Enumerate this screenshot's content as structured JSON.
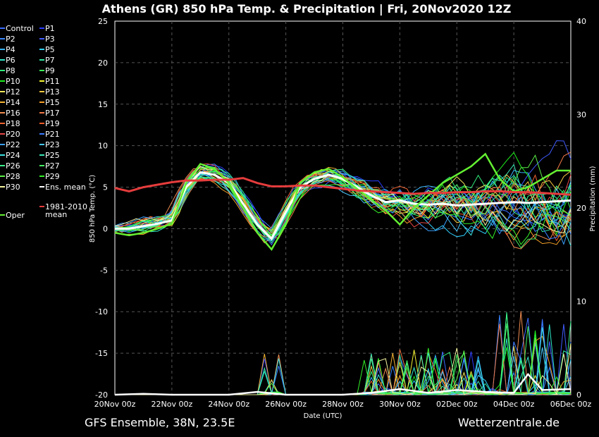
{
  "chart_data": {
    "type": "line",
    "title": "Athens  (GR)  850 hPa Temp. & Precipitation | Fri, 20Nov2020 12Z",
    "xlabel": "Date (UTC)",
    "ylabel_left": "850 hPa Temp. (°C)",
    "ylabel_right": "Precipitation (mm)",
    "x_ticks": [
      "20Nov 00z",
      "22Nov 00z",
      "24Nov 00z",
      "26Nov 00z",
      "28Nov 00z",
      "30Nov 00z",
      "02Dec 00z",
      "04Dec 00z",
      "06Dec 00z"
    ],
    "y_left_ticks": [
      "25",
      "20",
      "15",
      "10",
      "5",
      "0",
      "-5",
      "-10",
      "-15",
      "-20"
    ],
    "y_right_ticks": [
      "40",
      "30",
      "20",
      "10",
      "0"
    ],
    "ylim_left": [
      -20,
      25
    ],
    "ylim_right": [
      0,
      40
    ],
    "x_range_days": [
      0,
      16
    ],
    "grid": true,
    "legend_position": "left",
    "legend": [
      {
        "name": "Control",
        "color": "#3b6cff"
      },
      {
        "name": "P1",
        "color": "#2a3cff"
      },
      {
        "name": "P2",
        "color": "#3a86ff"
      },
      {
        "name": "P3",
        "color": "#3f5cff"
      },
      {
        "name": "P4",
        "color": "#36b4ff"
      },
      {
        "name": "P5",
        "color": "#2fd0ff"
      },
      {
        "name": "P6",
        "color": "#2ee6c8"
      },
      {
        "name": "P7",
        "color": "#2ee6a0"
      },
      {
        "name": "P8",
        "color": "#2eea7a"
      },
      {
        "name": "P9",
        "color": "#3cf25a"
      },
      {
        "name": "P10",
        "color": "#1ef01e"
      },
      {
        "name": "P11",
        "color": "#f5f532"
      },
      {
        "name": "P12",
        "color": "#f5e85a"
      },
      {
        "name": "P13",
        "color": "#f5c840"
      },
      {
        "name": "P14",
        "color": "#f5b432"
      },
      {
        "name": "P15",
        "color": "#f5a028"
      },
      {
        "name": "P16",
        "color": "#f08c50"
      },
      {
        "name": "P17",
        "color": "#f07846"
      },
      {
        "name": "P18",
        "color": "#f06432"
      },
      {
        "name": "P19",
        "color": "#f05a28"
      },
      {
        "name": "P20",
        "color": "#e64646"
      },
      {
        "name": "P21",
        "color": "#3a7cff"
      },
      {
        "name": "P22",
        "color": "#3aa0ff"
      },
      {
        "name": "P23",
        "color": "#46c8ff"
      },
      {
        "name": "P24",
        "color": "#3ae0e0"
      },
      {
        "name": "P25",
        "color": "#3ae6b4"
      },
      {
        "name": "P26",
        "color": "#3af08c"
      },
      {
        "name": "P27",
        "color": "#46f064"
      },
      {
        "name": "P28",
        "color": "#5af046"
      },
      {
        "name": "P29",
        "color": "#32f028"
      },
      {
        "name": "P30",
        "color": "#f5f5a0"
      },
      {
        "name": "Ens. mean",
        "color": "#ffffff"
      },
      {
        "name": "1981-2010 mean",
        "color": "#e63c3c"
      },
      {
        "name": "Oper",
        "color": "#64f032"
      }
    ],
    "series": [
      {
        "name": "Ens. mean",
        "x": [
          0,
          0.5,
          1,
          1.5,
          2,
          2.5,
          3,
          3.5,
          4,
          4.5,
          5,
          5.5,
          6,
          6.5,
          7,
          7.5,
          8,
          8.5,
          9,
          9.5,
          10,
          10.5,
          11,
          11.5,
          12,
          12.5,
          13,
          13.5,
          14,
          14.5,
          15,
          15.5,
          16
        ],
        "y": [
          0,
          0,
          0.3,
          0.6,
          1,
          5,
          6.8,
          6.5,
          5.5,
          3,
          0.5,
          -1.2,
          2,
          5,
          6,
          6.5,
          6,
          5,
          4,
          3.2,
          3.4,
          3,
          2.9,
          3,
          2.8,
          2.9,
          3,
          3.1,
          3.2,
          3.1,
          3.2,
          3.3,
          3.4
        ]
      },
      {
        "name": "Oper",
        "x": [
          0,
          0.5,
          1,
          1.5,
          2,
          2.5,
          3,
          3.5,
          4,
          4.5,
          5,
          5.5,
          6,
          6.5,
          7,
          7.5,
          8,
          8.5,
          9,
          9.5,
          10,
          10.5,
          11,
          11.5,
          12,
          12.5,
          13,
          13.5,
          14,
          14.5,
          15,
          15.5,
          16
        ],
        "y": [
          -0.5,
          -0.8,
          -0.5,
          0,
          0.6,
          5.5,
          7.8,
          7.2,
          5.5,
          2.5,
          -0.5,
          -2.5,
          0.5,
          5.5,
          6.8,
          7.2,
          6.2,
          4.8,
          3.5,
          2.2,
          0.5,
          2.5,
          4,
          5.5,
          6.5,
          7.5,
          9,
          6,
          4.5,
          5,
          6,
          7,
          7
        ]
      },
      {
        "name": "1981-2010 mean",
        "x": [
          0,
          0.5,
          1,
          1.5,
          2,
          2.5,
          3,
          3.5,
          4,
          4.5,
          5,
          5.5,
          6,
          6.5,
          7,
          7.5,
          8,
          8.5,
          9,
          9.5,
          10,
          10.5,
          11,
          11.5,
          12,
          12.5,
          13,
          13.5,
          14,
          14.5,
          15,
          15.5,
          16
        ],
        "y": [
          4.9,
          4.5,
          5,
          5.3,
          5.6,
          5.8,
          5.8,
          5.9,
          5.9,
          6.1,
          5.5,
          5.1,
          5.1,
          5.2,
          5.2,
          5,
          4.8,
          4.6,
          4.5,
          4.4,
          4.3,
          4.2,
          4.3,
          4.3,
          4.4,
          4.4,
          4.5,
          4.5,
          4.4,
          4.4,
          4.3,
          4.2,
          4.1
        ]
      }
    ],
    "precip_mean": {
      "unit": "mm",
      "x": [
        0,
        1,
        2,
        3,
        4,
        5,
        6,
        7,
        8,
        9,
        10,
        11,
        12,
        13,
        14,
        14.5,
        15,
        16
      ],
      "y": [
        0,
        0.1,
        0,
        0,
        0,
        0.3,
        0,
        0,
        0,
        0.2,
        0.6,
        0.2,
        0.5,
        0.3,
        0.2,
        2.2,
        0.5,
        0.6
      ]
    }
  },
  "footer": {
    "left": "GFS Ensemble, 38N, 23.5E",
    "right": "Wetterzentrale.de"
  }
}
